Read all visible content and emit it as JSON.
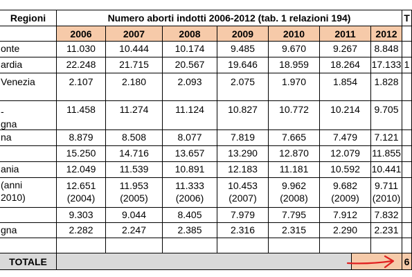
{
  "table": {
    "header_region": "Regioni",
    "header_title": "Numero aborti indotti 2006-2012 (tab. 1 relazioni 194)",
    "header_right_partial": "T",
    "years": [
      "2006",
      "2007",
      "2008",
      "2009",
      "2010",
      "2011",
      "2012"
    ],
    "rows": [
      {
        "region": [
          "onte"
        ],
        "values": [
          "11.030",
          "10.444",
          "10.174",
          "9.485",
          "9.670",
          "9.267",
          "8.848"
        ],
        "right_partial": ""
      },
      {
        "region": [
          "ardia"
        ],
        "values": [
          "22.248",
          "21.715",
          "20.567",
          "19.646",
          "18.959",
          "18.264",
          "17.133"
        ],
        "right_partial": "1"
      },
      {
        "region": [
          "Venezia"
        ],
        "values": [
          "2.107",
          "2.180",
          "2.093",
          "2.075",
          "1.970",
          "1.854",
          "1.828"
        ],
        "right_partial": ""
      },
      {
        "region": [
          "-",
          "gna"
        ],
        "values": [
          "11.458",
          "11.274",
          "11.124",
          "10.827",
          "10.772",
          "10.214",
          "9.705"
        ],
        "right_partial": ""
      },
      {
        "region": [
          "na"
        ],
        "values": [
          "8.879",
          "8.508",
          "8.077",
          "7.819",
          "7.665",
          "7.479",
          "7.121"
        ],
        "right_partial": ""
      },
      {
        "region": [
          ""
        ],
        "values": [
          "15.250",
          "14.716",
          "13.657",
          "13.290",
          "12.870",
          "12.079",
          "11.855"
        ],
        "right_partial": ""
      },
      {
        "region": [
          "ania"
        ],
        "values": [
          "12.049",
          "11.539",
          "10.891",
          "12.183",
          "11.181",
          "10.592",
          "10.441"
        ],
        "right_partial": ""
      },
      {
        "region": [
          "(anni",
          "2010)"
        ],
        "values": [
          "12.651",
          "11.953",
          "11.333",
          "10.453",
          "9.962",
          "9.682",
          "9.711"
        ],
        "sub": [
          "(2004)",
          "(2005)",
          "(2006)",
          "(2007)",
          "(2008)",
          "(2009)",
          "(2010)"
        ],
        "right_partial": ""
      },
      {
        "region": [
          ""
        ],
        "values": [
          "9.303",
          "9.044",
          "8.405",
          "7.979",
          "7.795",
          "7.912",
          "7.832"
        ],
        "right_partial": ""
      },
      {
        "region": [
          "gna"
        ],
        "values": [
          "2.282",
          "2.247",
          "2.385",
          "2.316",
          "2.315",
          "2.290",
          "2.231"
        ],
        "right_partial": ""
      },
      {
        "region": [
          ""
        ],
        "values": [
          "",
          "",
          "",
          "",
          "",
          "",
          ""
        ],
        "right_partial": ""
      }
    ],
    "total_label": "TOTALE",
    "total_right_partial": "6"
  },
  "colors": {
    "year_header_bg": "#f6caa9",
    "total_row_bg": "#d9d9d9",
    "arrow": "#e02020"
  }
}
